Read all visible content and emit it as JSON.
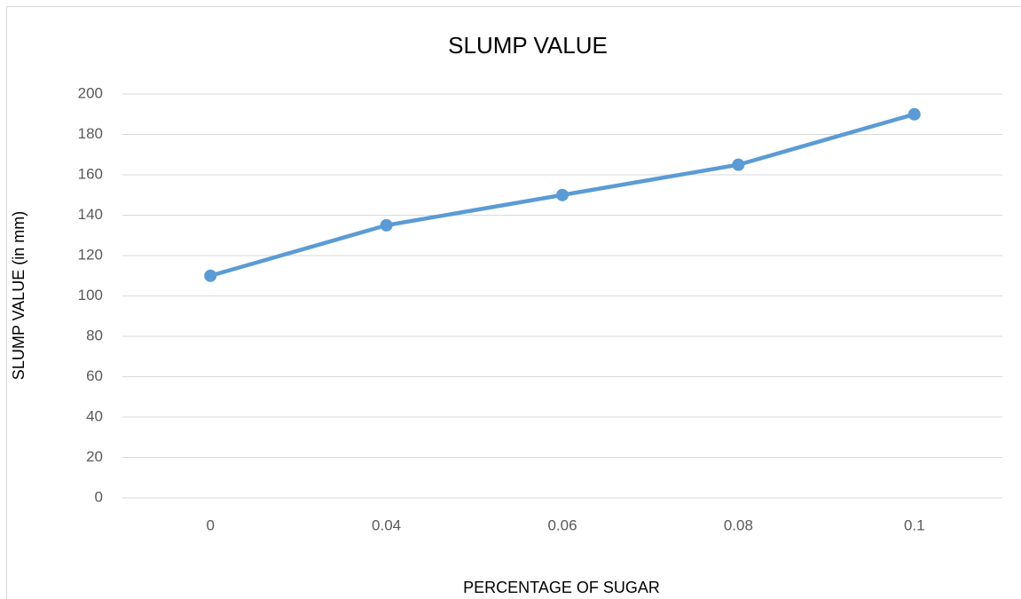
{
  "chart_data": {
    "type": "line",
    "title": "SLUMP VALUE",
    "x_label": "PERCENTAGE OF SUGAR",
    "y_label": "SLUMP VALUE (in mm)",
    "categories": [
      "0",
      "0.04",
      "0.06",
      "0.08",
      "0.1"
    ],
    "series": [
      {
        "name": "SLUMP VALUE",
        "color": "#5b9bd5",
        "values": [
          110,
          135,
          150,
          165,
          190
        ]
      }
    ],
    "ylim": [
      0,
      200
    ],
    "yticks": [
      0,
      20,
      40,
      60,
      80,
      100,
      120,
      140,
      160,
      180,
      200
    ],
    "grid": true,
    "legend": false
  }
}
